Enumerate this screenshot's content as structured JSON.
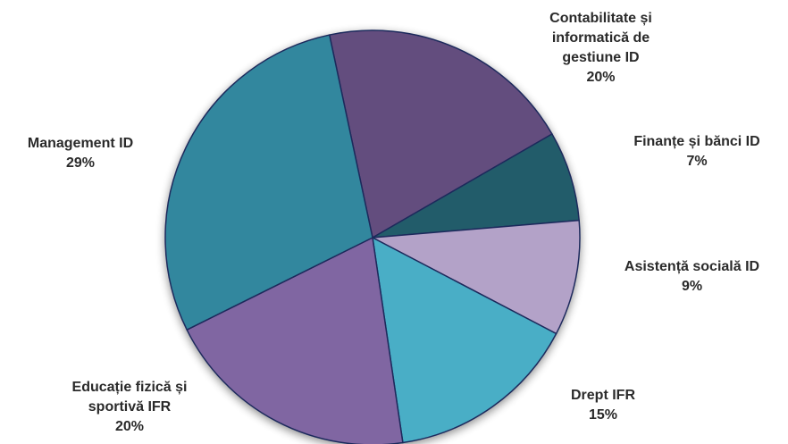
{
  "chart_data": {
    "type": "pie",
    "title": "",
    "start_angle_deg": -102,
    "border_color": "#1f2a5c",
    "slices": [
      {
        "label": "Contabilitate și informatică de gestiune ID",
        "label_lines": [
          "Contabilitate și",
          "informatică de",
          "gestiune ID"
        ],
        "percent_label": "20%",
        "value": 20,
        "color": "#634d7e"
      },
      {
        "label": "Finanțe și bănci ID",
        "label_lines": [
          "Finanțe și bănci ID"
        ],
        "percent_label": "7%",
        "value": 7,
        "color": "#235b6b"
      },
      {
        "label": "Asistență socială ID",
        "label_lines": [
          "Asistență socială ID"
        ],
        "percent_label": "9%",
        "value": 9,
        "color": "#b3a2c8"
      },
      {
        "label": "Drept IFR",
        "label_lines": [
          "Drept IFR"
        ],
        "percent_label": "15%",
        "value": 15,
        "color": "#4aaec6"
      },
      {
        "label": "Educație fizică și sportivă IFR",
        "label_lines": [
          "Educație fizică și",
          "sportivă IFR"
        ],
        "percent_label": "20%",
        "value": 20,
        "color": "#8066a2"
      },
      {
        "label": "Management ID",
        "label_lines": [
          "Management ID"
        ],
        "percent_label": "29%",
        "value": 29,
        "color": "#33879e"
      }
    ]
  }
}
